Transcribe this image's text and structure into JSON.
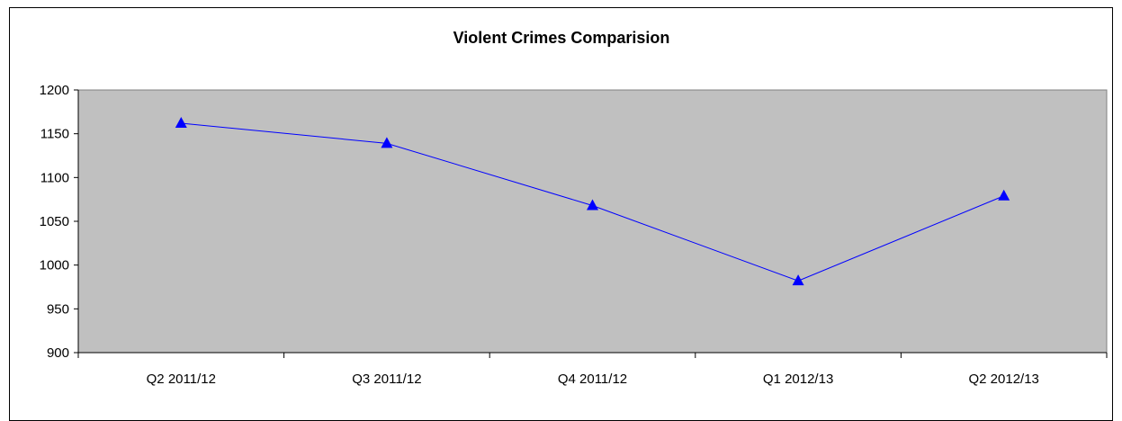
{
  "chart_data": {
    "type": "line",
    "title": "Violent Crimes Comparision",
    "xlabel": "",
    "ylabel": "",
    "categories": [
      "Q2 2011/12",
      "Q3 2011/12",
      "Q4 2011/12",
      "Q1 2012/13",
      "Q2 2012/13"
    ],
    "series": [
      {
        "values": [
          1162,
          1139,
          1068,
          982,
          1079
        ]
      }
    ],
    "ylim": [
      900,
      1200
    ],
    "yticks": [
      "900",
      "950",
      "1000",
      "1050",
      "1100",
      "1150",
      "1200"
    ],
    "grid": false,
    "legend": "none",
    "colors": {
      "plot_background": "#C0C0C0",
      "line": "#0000FF",
      "marker": "#0000FF",
      "axis": "#808080"
    },
    "marker": "triangle"
  }
}
